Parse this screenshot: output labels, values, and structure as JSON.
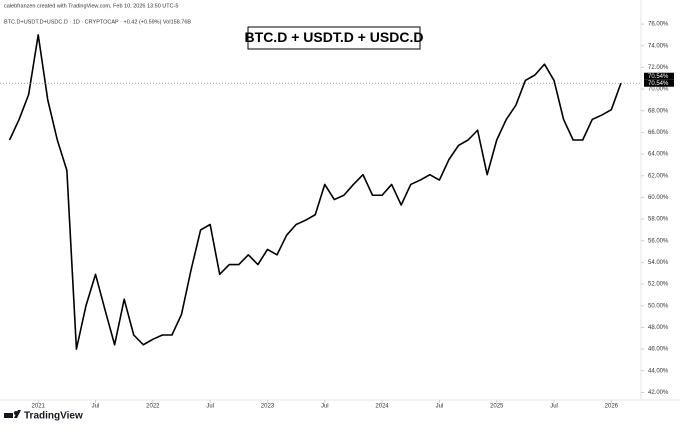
{
  "chart_data": {
    "type": "line",
    "attribution": "calebfranzen created with TradingView.com, Feb 10, 2026 13:50 UTC-5",
    "subtitle": "BTC.D+USDT.D+USDC.D · 1D · CRYPTOCAP · +0.42 (+0.59%) Vol158.76B",
    "title": "BTC.D + USDT.D + USDC.D",
    "brand": "TradingView",
    "color": "#000000",
    "x": [
      "2020-10",
      "2020-11",
      "2020-12",
      "2021-01",
      "2021-02",
      "2021-03",
      "2021-04",
      "2021-05",
      "2021-06",
      "2021-07",
      "2021-08",
      "2021-09",
      "2021-10",
      "2021-11",
      "2021-12",
      "2022-01",
      "2022-02",
      "2022-03",
      "2022-04",
      "2022-05",
      "2022-06",
      "2022-07",
      "2022-08",
      "2022-09",
      "2022-10",
      "2022-11",
      "2022-12",
      "2023-01",
      "2023-02",
      "2023-03",
      "2023-04",
      "2023-05",
      "2023-06",
      "2023-07",
      "2023-08",
      "2023-09",
      "2023-10",
      "2023-11",
      "2023-12",
      "2024-01",
      "2024-02",
      "2024-03",
      "2024-04",
      "2024-05",
      "2024-06",
      "2024-07",
      "2024-08",
      "2024-09",
      "2024-10",
      "2024-11",
      "2024-12",
      "2025-01",
      "2025-02",
      "2025-03",
      "2025-04",
      "2025-05",
      "2025-06",
      "2025-07",
      "2025-08",
      "2025-09",
      "2025-10",
      "2025-11",
      "2025-12",
      "2026-01",
      "2026-02"
    ],
    "values": [
      65.3,
      67.2,
      69.5,
      75.0,
      69.0,
      65.3,
      62.5,
      46.0,
      50.0,
      52.9,
      49.6,
      46.4,
      50.6,
      47.3,
      46.4,
      46.9,
      47.3,
      47.3,
      49.2,
      53.3,
      57.0,
      57.5,
      52.9,
      53.8,
      53.8,
      54.7,
      53.8,
      55.2,
      54.7,
      56.5,
      57.5,
      57.9,
      58.4,
      61.2,
      59.8,
      60.2,
      61.2,
      62.1,
      60.2,
      60.2,
      61.2,
      59.3,
      61.2,
      61.6,
      62.1,
      61.6,
      63.5,
      64.8,
      65.3,
      66.2,
      62.1,
      65.3,
      67.2,
      68.5,
      70.8,
      71.3,
      72.3,
      70.8,
      67.2,
      65.3,
      65.3,
      67.2,
      67.6,
      68.1,
      70.54
    ],
    "last_price": {
      "value": 70.54,
      "label": "70.54%"
    },
    "xlim": [
      "2020-09",
      "2026-04"
    ],
    "xticks": [
      {
        "value": "2021-01",
        "label": "2021"
      },
      {
        "value": "2021-07",
        "label": "Jul"
      },
      {
        "value": "2022-01",
        "label": "2022"
      },
      {
        "value": "2022-07",
        "label": "Jul"
      },
      {
        "value": "2023-01",
        "label": "2023"
      },
      {
        "value": "2023-07",
        "label": "Jul"
      },
      {
        "value": "2024-01",
        "label": "2024"
      },
      {
        "value": "2024-07",
        "label": "Jul"
      },
      {
        "value": "2025-01",
        "label": "2025"
      },
      {
        "value": "2025-07",
        "label": "Jul"
      },
      {
        "value": "2026-01",
        "label": "2026"
      }
    ],
    "ylim": [
      41.3,
      77.3
    ],
    "yticks": [
      {
        "value": 42,
        "label": "42.00%"
      },
      {
        "value": 44,
        "label": "44.00%"
      },
      {
        "value": 46,
        "label": "46.00%"
      },
      {
        "value": 48,
        "label": "48.00%"
      },
      {
        "value": 50,
        "label": "50.00%"
      },
      {
        "value": 52,
        "label": "52.00%"
      },
      {
        "value": 54,
        "label": "54.00%"
      },
      {
        "value": 56,
        "label": "56.00%"
      },
      {
        "value": 58,
        "label": "58.00%"
      },
      {
        "value": 60,
        "label": "60.00%"
      },
      {
        "value": 62,
        "label": "62.00%"
      },
      {
        "value": 64,
        "label": "64.00%"
      },
      {
        "value": 66,
        "label": "66.00%"
      },
      {
        "value": 68,
        "label": "68.00%"
      },
      {
        "value": 70,
        "label": "70.00%"
      },
      {
        "value": 72,
        "label": "72.00%"
      },
      {
        "value": 74,
        "label": "74.00%"
      },
      {
        "value": 76,
        "label": "76.00%"
      }
    ],
    "grid": false
  }
}
